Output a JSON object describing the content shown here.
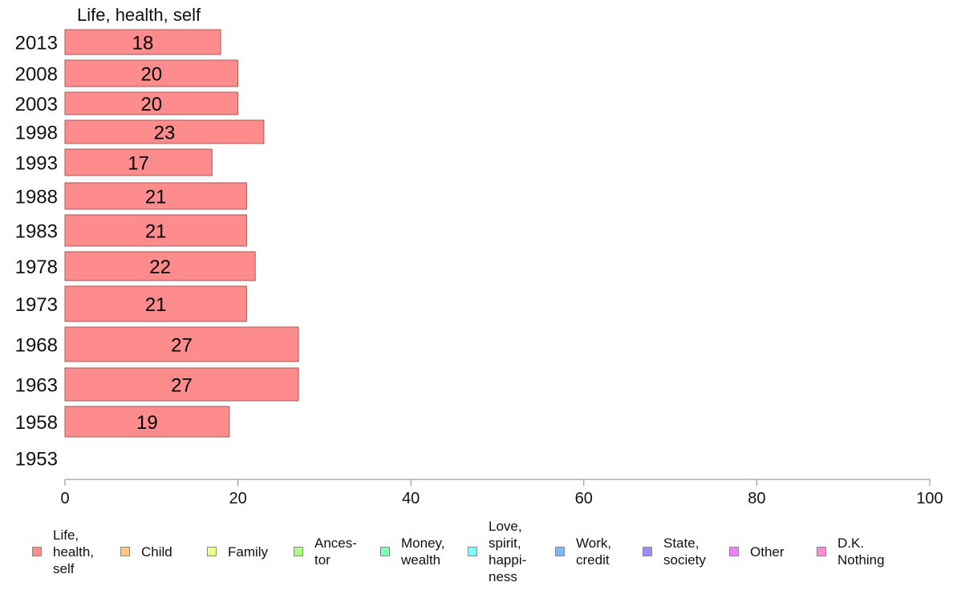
{
  "chart_data": {
    "type": "bar",
    "orientation": "horizontal",
    "title": "Life, health, self",
    "categories": [
      "2013",
      "2008",
      "2003",
      "1998",
      "1993",
      "1988",
      "1983",
      "1978",
      "1973",
      "1968",
      "1963",
      "1958",
      "1953"
    ],
    "series": [
      {
        "name": "Life,\nhealth,\nself",
        "color": "#ff8c8c",
        "values": [
          18,
          20,
          20,
          23,
          17,
          21,
          21,
          22,
          21,
          27,
          27,
          19,
          null
        ],
        "labels": [
          "18",
          "20",
          "20",
          "23",
          "17",
          "21",
          "21",
          "22",
          "21",
          "27",
          "27",
          "19",
          ""
        ]
      }
    ],
    "xlim": [
      0,
      100
    ],
    "xticks": [
      "0",
      "20",
      "40",
      "60",
      "80",
      "100"
    ],
    "grid": false,
    "legend_position": "bottom"
  },
  "legend": [
    {
      "label": "Life,\nhealth,\nself",
      "color": "#ff8c8c",
      "icon": "square-swatch"
    },
    {
      "label": "Child",
      "color": "#ffc880",
      "icon": "square-swatch"
    },
    {
      "label": "Family",
      "color": "#f0ff80",
      "icon": "square-swatch"
    },
    {
      "label": "Ances-\ntor",
      "color": "#a8ff80",
      "icon": "square-swatch"
    },
    {
      "label": "Money,\nwealth",
      "color": "#80ffb8",
      "icon": "square-swatch"
    },
    {
      "label": "Love,\nspirit,\nhappi-\nness",
      "color": "#80ffff",
      "icon": "square-swatch"
    },
    {
      "label": "Work,\ncredit",
      "color": "#80b4ff",
      "icon": "square-swatch"
    },
    {
      "label": "State,\nsociety",
      "color": "#9c8cff",
      "icon": "square-swatch"
    },
    {
      "label": "Other",
      "color": "#f080ff",
      "icon": "square-swatch"
    },
    {
      "label": "D.K.\nNothing",
      "color": "#ff8cd0",
      "icon": "square-swatch"
    }
  ]
}
